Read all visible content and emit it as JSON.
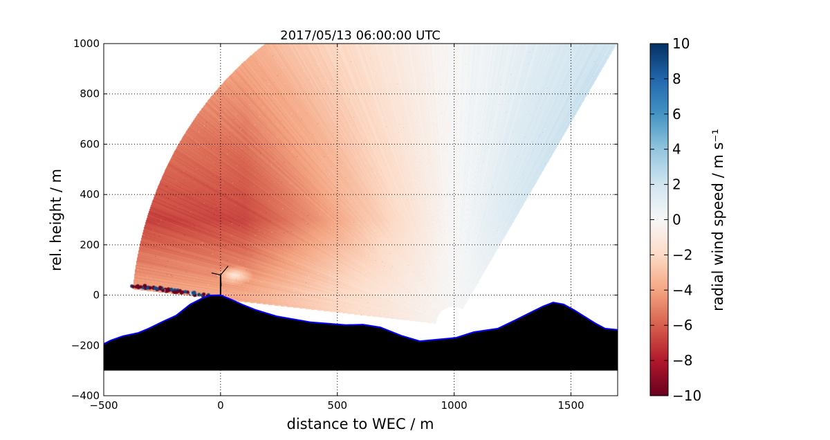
{
  "chart_data": {
    "type": "heatmap",
    "title": "2017/05/13 06:00:00 UTC",
    "xlabel": "distance to WEC / m",
    "ylabel": "rel. height / m",
    "xlim": [
      -500,
      1700
    ],
    "ylim": [
      -400,
      1000
    ],
    "xticks": [
      -500,
      0,
      500,
      1000,
      1500
    ],
    "yticks": [
      -400,
      -200,
      0,
      200,
      400,
      600,
      800,
      1000
    ],
    "xtick_labels": [
      "−500",
      "0",
      "500",
      "1000",
      "1500"
    ],
    "ytick_labels": [
      "−400",
      "−200",
      "0",
      "200",
      "400",
      "600",
      "800",
      "1000"
    ],
    "grid": true,
    "colorbar": {
      "label": "radial wind speed / m s⁻¹",
      "range": [
        -10,
        10
      ],
      "ticks": [
        -10,
        -8,
        -6,
        -4,
        -2,
        0,
        2,
        4,
        6,
        8,
        10
      ],
      "tick_labels": [
        "−10",
        "−8",
        "−6",
        "−4",
        "−2",
        "0",
        "2",
        "4",
        "6",
        "8",
        "10"
      ],
      "colormap": [
        "#67001f",
        "#b2182b",
        "#d6604d",
        "#f4a582",
        "#fddbc7",
        "#f7f7f7",
        "#d1e5f0",
        "#92c5de",
        "#4393c3",
        "#2166ac",
        "#053061"
      ]
    },
    "scan": {
      "lidar_position": [
        995,
        -120
      ],
      "max_range_m": 1380,
      "blind_range_m": 75,
      "elevation_deg_min": 58,
      "elevation_deg_max": 174,
      "wind_field_description_values": {
        "min_ms": -7,
        "max_ms": 3.5
      }
    },
    "wec": {
      "position": [
        0,
        0
      ],
      "hub_height_m": 80
    },
    "terrain": {
      "floor": -300,
      "profile": [
        [
          -500,
          -194
        ],
        [
          -470,
          -180
        ],
        [
          -418,
          -163
        ],
        [
          -352,
          -150
        ],
        [
          -308,
          -133
        ],
        [
          -249,
          -106
        ],
        [
          -190,
          -81
        ],
        [
          -130,
          -37
        ],
        [
          -71,
          -9
        ],
        [
          -41,
          -1
        ],
        [
          0,
          0
        ],
        [
          47,
          -18
        ],
        [
          92,
          -37
        ],
        [
          151,
          -59
        ],
        [
          240,
          -84
        ],
        [
          388,
          -108
        ],
        [
          536,
          -119
        ],
        [
          610,
          -117
        ],
        [
          684,
          -128
        ],
        [
          773,
          -161
        ],
        [
          853,
          -183
        ],
        [
          980,
          -172
        ],
        [
          1010,
          -169
        ],
        [
          1084,
          -147
        ],
        [
          1187,
          -133
        ],
        [
          1261,
          -100
        ],
        [
          1380,
          -45
        ],
        [
          1424,
          -29
        ],
        [
          1469,
          -37
        ],
        [
          1513,
          -59
        ],
        [
          1602,
          -111
        ],
        [
          1646,
          -133
        ],
        [
          1700,
          -138
        ]
      ],
      "fill": "#000000",
      "outline": "#0000ff"
    }
  }
}
